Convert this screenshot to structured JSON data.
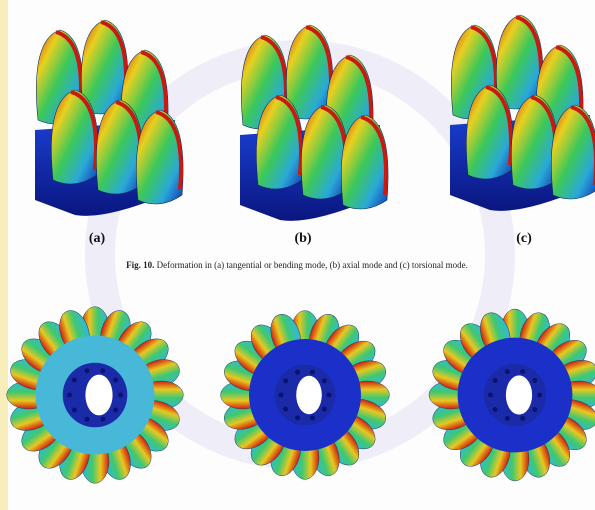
{
  "figure": {
    "subfigure_labels": [
      "(a)",
      "(b)",
      "(c)"
    ],
    "caption": {
      "label": "Fig. 10.",
      "text": "Deformation in (a) tangential or bending mode, (b) axial mode and (c) torsional mode."
    }
  }
}
